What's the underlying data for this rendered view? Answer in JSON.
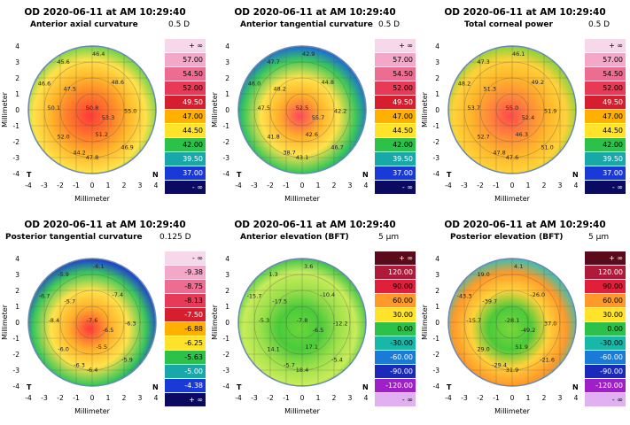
{
  "panels": [
    {
      "header": "OD  2020-06-11 at AM 10:29:40",
      "subtitle": "Anterior axial curvature",
      "step": "0.5 D",
      "scale": [
        "+ ∞",
        "57.00",
        "54.50",
        "52.00",
        "49.50",
        "47.00",
        "44.50",
        "42.00",
        "39.50",
        "37.00",
        "- ∞"
      ],
      "scale_colors": [
        "#f7d8ea",
        "#f2a8c6",
        "#ec6d8f",
        "#e63a56",
        "#d61f2e",
        "#ffb000",
        "#ffe22a",
        "#2cc24a",
        "#18a8a8",
        "#1a3ad8",
        "#0a0a60"
      ],
      "map_colors": [
        "#ff3a3a",
        "#ff7a2a",
        "#ffb52a",
        "#ffe24a",
        "#6fd34a"
      ],
      "values": [
        "45.6",
        "46.4",
        "46.6",
        "47.5",
        "48.6",
        "50.1",
        "50.8",
        "53.3",
        "55.0",
        "52.0",
        "51.2",
        "47.8",
        "46.9",
        "44.2"
      ]
    },
    {
      "header": "OD  2020-06-11 at AM 10:29:40",
      "subtitle": "Anterior tangential curvature",
      "step": "0.5 D",
      "scale": [
        "+ ∞",
        "57.00",
        "54.50",
        "52.00",
        "49.50",
        "47.00",
        "44.50",
        "42.00",
        "39.50",
        "37.00",
        "- ∞"
      ],
      "scale_colors": [
        "#f7d8ea",
        "#f2a8c6",
        "#ec6d8f",
        "#e63a56",
        "#d61f2e",
        "#ffb000",
        "#ffe22a",
        "#2cc24a",
        "#18a8a8",
        "#1a3ad8",
        "#0a0a60"
      ],
      "map_colors": [
        "#ff4a5a",
        "#ffb02a",
        "#ffe24a",
        "#3cc85a",
        "#1a6ad8"
      ],
      "values": [
        "47.7",
        "42.9",
        "46.0",
        "48.2",
        "44.8",
        "47.5",
        "52.5",
        "55.7",
        "42.2",
        "41.8",
        "42.6",
        "43.1",
        "46.7",
        "38.7"
      ]
    },
    {
      "header": "OD  2020-06-11 at AM 10:29:40",
      "subtitle": "Total corneal power",
      "step": "0.5 D",
      "scale": [
        "+ ∞",
        "57.00",
        "54.50",
        "52.00",
        "49.50",
        "47.00",
        "44.50",
        "42.00",
        "39.50",
        "37.00",
        "- ∞"
      ],
      "scale_colors": [
        "#f7d8ea",
        "#f2a8c6",
        "#ec6d8f",
        "#e63a56",
        "#d61f2e",
        "#ffb000",
        "#ffe22a",
        "#2cc24a",
        "#18a8a8",
        "#1a3ad8",
        "#0a0a60"
      ],
      "map_colors": [
        "#ff4a4a",
        "#ff8a3a",
        "#ffb52a",
        "#ffd23a",
        "#8ad23a"
      ],
      "values": [
        "47.3",
        "46.1",
        "48.2",
        "51.3",
        "49.2",
        "53.7",
        "55.0",
        "52.4",
        "51.9",
        "52.7",
        "46.3",
        "47.6",
        "51.0",
        "47.8"
      ]
    },
    {
      "header": "OD  2020-06-11 at AM 10:29:40",
      "subtitle": "Posterior tangential curvature",
      "step": "0.125 D",
      "scale": [
        "- ∞",
        "-9.38",
        "-8.75",
        "-8.13",
        "-7.50",
        "-6.88",
        "-6.25",
        "-5.63",
        "-5.00",
        "-4.38",
        "+ ∞"
      ],
      "scale_colors": [
        "#f7d8ea",
        "#f2a8c6",
        "#ec6d8f",
        "#e63a56",
        "#d61f2e",
        "#ffb000",
        "#ffe22a",
        "#2cc24a",
        "#18a8a8",
        "#1a3ad8",
        "#0a0a60"
      ],
      "map_colors": [
        "#ff3a3a",
        "#ffb02a",
        "#ffe24a",
        "#3cc85a",
        "#1a3ad8"
      ],
      "values": [
        "-5.9",
        "-6.1",
        "-6.7",
        "-5.7",
        "-7.4",
        "-8.4",
        "-7.6",
        "-6.5",
        "-6.3",
        "-6.0",
        "-5.5",
        "-6.4",
        "-5.9",
        "-6.3"
      ]
    },
    {
      "header": "OD  2020-06-11 at AM 10:29:40",
      "subtitle": "Anterior elevation (BFT)",
      "step": "5 µm",
      "scale": [
        "+ ∞",
        "120.00",
        "90.00",
        "60.00",
        "30.00",
        "0.00",
        "-30.00",
        "-60.00",
        "-90.00",
        "-120.00",
        "- ∞"
      ],
      "scale_colors": [
        "#5a0a1a",
        "#b01a3a",
        "#e0203a",
        "#ff9a2a",
        "#ffe22a",
        "#2cc24a",
        "#18b8a8",
        "#1a7ad8",
        "#1a2ab8",
        "#a020c8",
        "#e0b0f0"
      ],
      "map_colors": [
        "#6ad83a",
        "#4acb3a",
        "#9ae04a",
        "#c8ec5a",
        "#3cc24a"
      ],
      "values": [
        "1.3",
        "3.6",
        "-15.7",
        "-17.5",
        "-10.4",
        "-5.3",
        "-7.8",
        "-6.5",
        "-12.2",
        "14.1",
        "17.1",
        "18.4",
        "-5.4",
        "-5.7"
      ]
    },
    {
      "header": "OD  2020-06-11 at AM 10:29:40",
      "subtitle": "Posterior elevation (BFT)",
      "step": "5 µm",
      "scale": [
        "+ ∞",
        "120.00",
        "90.00",
        "60.00",
        "30.00",
        "0.00",
        "-30.00",
        "-60.00",
        "-90.00",
        "-120.00",
        "- ∞"
      ],
      "scale_colors": [
        "#5a0a1a",
        "#b01a3a",
        "#e0203a",
        "#ff9a2a",
        "#ffe22a",
        "#2cc24a",
        "#18b8a8",
        "#1a7ad8",
        "#1a2ab8",
        "#a020c8",
        "#e0b0f0"
      ],
      "map_colors": [
        "#7ad83a",
        "#4acb3a",
        "#ffd23a",
        "#ff9a2a",
        "#38c0b0"
      ],
      "values": [
        "19.0",
        "4.1",
        "-43.3",
        "-39.7",
        "-26.0",
        "-15.7",
        "-28.1",
        "-49.2",
        "37.0",
        "29.0",
        "51.9",
        "31.9",
        "-21.6",
        "-29.4"
      ]
    }
  ],
  "axis": {
    "ticks": [
      "-4",
      "-3",
      "-2",
      "-1",
      "0",
      "1",
      "2",
      "3",
      "4"
    ],
    "xlabel": "Millimeter",
    "ylabel": "Millimeter",
    "left_marker": "T",
    "right_marker": "N"
  }
}
